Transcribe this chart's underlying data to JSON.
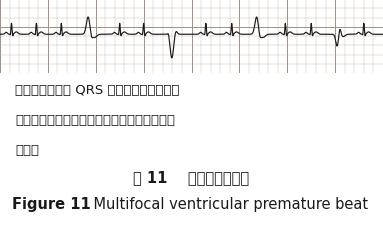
{
  "background_color": "#ffffff",
  "note_line1": "注：室性早搏的 QRS 波形态不一，同一导",
  "note_line2": "联上至少有两种以上的形态，且联律间期也互",
  "note_line3": "不相等",
  "caption_zh": "图 11    多源性室性早搏",
  "caption_en_bold": "Figure 11",
  "caption_en_rest": "    Multifocal ventricular premature beat",
  "note_fontsize": 9.5,
  "caption_zh_fontsize": 10.5,
  "caption_en_fontsize": 10.5,
  "ecg_bg_color": "#d8cfc0",
  "grid_minor_color": "#b8a898",
  "grid_major_color": "#a09080",
  "ecg_color": "#1a1a1a",
  "text_color": "#1a1a1a"
}
